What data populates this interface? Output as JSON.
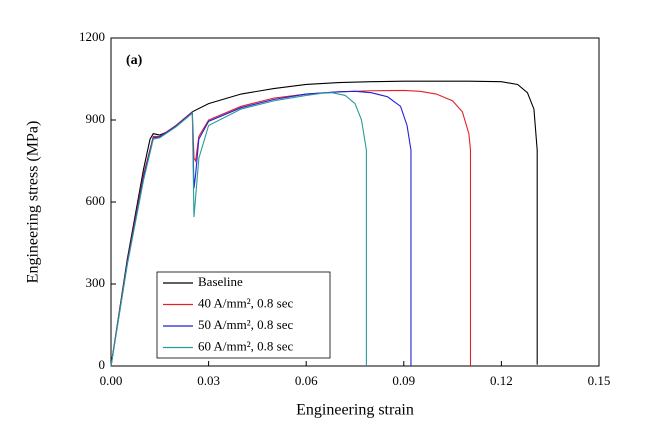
{
  "chart_data": {
    "type": "line",
    "annotation": "(a)",
    "x_label": "Engineering strain",
    "y_label": "Engineering stress (MPa)",
    "xlim": [
      0,
      0.15
    ],
    "ylim": [
      0,
      1200
    ],
    "xticks": [
      {
        "value": 0,
        "label": "0.00"
      },
      0.03,
      0.06,
      0.09,
      0.12,
      0.15
    ],
    "yticks": [
      0,
      300,
      600,
      900,
      1200
    ],
    "series": [
      {
        "name": "Baseline",
        "color": "#000000",
        "x": [
          0,
          0.005,
          0.01,
          0.012,
          0.013,
          0.015,
          0.017,
          0.02,
          0.025,
          0.03,
          0.04,
          0.05,
          0.06,
          0.07,
          0.08,
          0.09,
          0.1,
          0.11,
          0.12,
          0.125,
          0.128,
          0.13,
          0.131,
          0.131
        ],
        "values": [
          0,
          390,
          720,
          830,
          850,
          845,
          855,
          880,
          930,
          960,
          995,
          1015,
          1030,
          1037,
          1040,
          1042,
          1042,
          1042,
          1040,
          1030,
          1000,
          940,
          790,
          5
        ]
      },
      {
        "name": "40 A/mm², 0.8 sec",
        "color": "#e4202a",
        "x": [
          0,
          0.005,
          0.01,
          0.013,
          0.015,
          0.02,
          0.025,
          0.0255,
          0.026,
          0.027,
          0.03,
          0.04,
          0.05,
          0.06,
          0.07,
          0.08,
          0.09,
          0.095,
          0.1,
          0.105,
          0.108,
          0.11,
          0.1105,
          0.1105
        ],
        "values": [
          0,
          380,
          700,
          840,
          840,
          880,
          930,
          760,
          750,
          840,
          900,
          950,
          980,
          995,
          1003,
          1007,
          1008,
          1005,
          995,
          970,
          930,
          850,
          790,
          0
        ]
      },
      {
        "name": "50 A/mm², 0.8 sec",
        "color": "#2222d8",
        "x": [
          0,
          0.005,
          0.01,
          0.013,
          0.015,
          0.02,
          0.025,
          0.0255,
          0.026,
          0.027,
          0.03,
          0.04,
          0.05,
          0.06,
          0.07,
          0.075,
          0.08,
          0.085,
          0.089,
          0.091,
          0.0922,
          0.0922
        ],
        "values": [
          0,
          375,
          690,
          835,
          838,
          878,
          928,
          650,
          700,
          830,
          895,
          945,
          975,
          995,
          1003,
          1005,
          1000,
          985,
          950,
          880,
          790,
          0
        ]
      },
      {
        "name": "60 A/mm², 0.8 sec",
        "color": "#2a9a9a",
        "x": [
          0,
          0.005,
          0.01,
          0.013,
          0.015,
          0.02,
          0.025,
          0.0255,
          0.027,
          0.03,
          0.04,
          0.05,
          0.06,
          0.065,
          0.068,
          0.072,
          0.075,
          0.077,
          0.0785,
          0.0785
        ],
        "values": [
          0,
          370,
          680,
          830,
          835,
          875,
          925,
          545,
          760,
          880,
          940,
          970,
          990,
          998,
          1000,
          990,
          960,
          900,
          790,
          0
        ]
      }
    ]
  }
}
